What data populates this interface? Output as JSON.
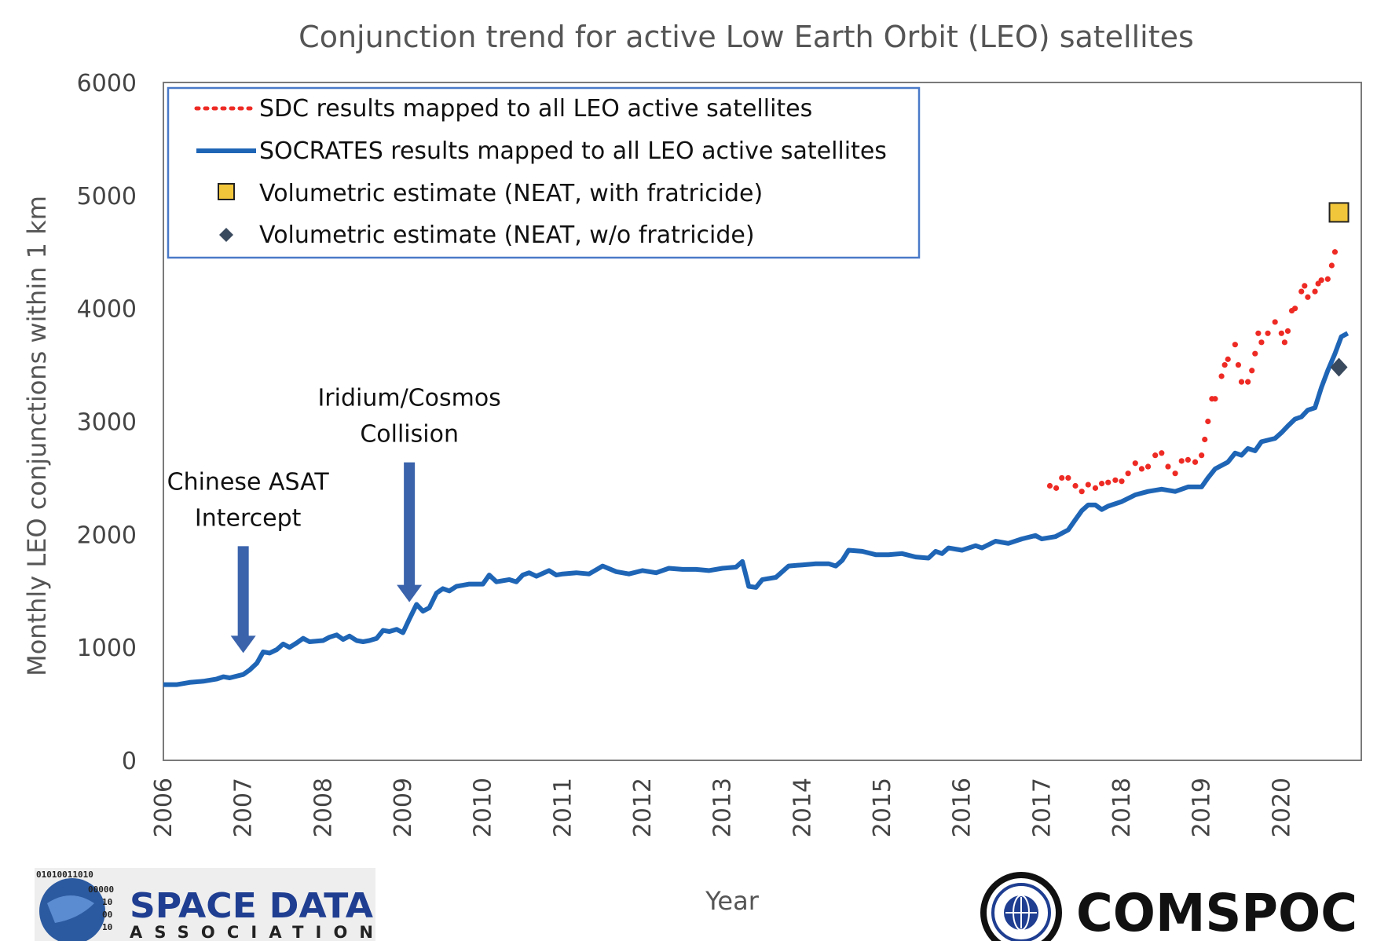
{
  "colors": {
    "socrates": "#1f65b6",
    "sdc": "#ee2a24",
    "neat_with": "#f2c63b",
    "neat_without": "#3a4a5e",
    "axis": "#7a7a7a",
    "legend_border": "#4a7ac8",
    "arrow": "#3a63ac",
    "sda_blue": "#1f3e91",
    "comspoc": "#111111"
  },
  "chart_data": {
    "type": "line",
    "title": "Conjunction trend for active Low Earth Orbit (LEO) satellites",
    "xlabel": "Year",
    "ylabel": "Monthly LEO conjunctions within 1 km",
    "xlim": [
      2006,
      2021
    ],
    "ylim": [
      0,
      6000
    ],
    "x_ticks": [
      "2006",
      "2007",
      "2008",
      "2009",
      "2010",
      "2011",
      "2012",
      "2013",
      "2014",
      "2015",
      "2016",
      "2017",
      "2018",
      "2019",
      "2020"
    ],
    "y_ticks": [
      "0",
      "1000",
      "2000",
      "3000",
      "4000",
      "5000",
      "6000"
    ],
    "grid": false,
    "legend_position": "top-left",
    "series": [
      {
        "name": "SDC results mapped to all LEO active satellites",
        "style": "dotted",
        "points": [
          [
            2017.1,
            2430
          ],
          [
            2017.18,
            2410
          ],
          [
            2017.25,
            2500
          ],
          [
            2017.33,
            2500
          ],
          [
            2017.42,
            2430
          ],
          [
            2017.5,
            2380
          ],
          [
            2017.58,
            2440
          ],
          [
            2017.67,
            2410
          ],
          [
            2017.75,
            2450
          ],
          [
            2017.83,
            2460
          ],
          [
            2017.92,
            2480
          ],
          [
            2018.0,
            2470
          ],
          [
            2018.08,
            2540
          ],
          [
            2018.17,
            2630
          ],
          [
            2018.25,
            2580
          ],
          [
            2018.33,
            2600
          ],
          [
            2018.42,
            2700
          ],
          [
            2018.5,
            2720
          ],
          [
            2018.58,
            2600
          ],
          [
            2018.67,
            2540
          ],
          [
            2018.75,
            2650
          ],
          [
            2018.83,
            2660
          ],
          [
            2018.92,
            2640
          ],
          [
            2019.0,
            2700
          ],
          [
            2019.04,
            2840
          ],
          [
            2019.08,
            3000
          ],
          [
            2019.13,
            3200
          ],
          [
            2019.17,
            3200
          ],
          [
            2019.25,
            3400
          ],
          [
            2019.29,
            3500
          ],
          [
            2019.33,
            3550
          ],
          [
            2019.42,
            3680
          ],
          [
            2019.46,
            3500
          ],
          [
            2019.5,
            3350
          ],
          [
            2019.58,
            3350
          ],
          [
            2019.63,
            3450
          ],
          [
            2019.67,
            3600
          ],
          [
            2019.71,
            3780
          ],
          [
            2019.75,
            3700
          ],
          [
            2019.83,
            3780
          ],
          [
            2019.92,
            3880
          ],
          [
            2020.0,
            3780
          ],
          [
            2020.04,
            3700
          ],
          [
            2020.08,
            3800
          ],
          [
            2020.13,
            3980
          ],
          [
            2020.17,
            4000
          ],
          [
            2020.25,
            4150
          ],
          [
            2020.29,
            4200
          ],
          [
            2020.33,
            4100
          ],
          [
            2020.42,
            4150
          ],
          [
            2020.46,
            4220
          ],
          [
            2020.5,
            4250
          ],
          [
            2020.58,
            4260
          ],
          [
            2020.63,
            4380
          ],
          [
            2020.67,
            4500
          ]
        ]
      },
      {
        "name": "SOCRATES results mapped to all LEO active satellites",
        "style": "solid",
        "points": [
          [
            2006.0,
            670
          ],
          [
            2006.17,
            670
          ],
          [
            2006.33,
            690
          ],
          [
            2006.5,
            700
          ],
          [
            2006.67,
            720
          ],
          [
            2006.75,
            740
          ],
          [
            2006.83,
            730
          ],
          [
            2007.0,
            760
          ],
          [
            2007.08,
            800
          ],
          [
            2007.17,
            860
          ],
          [
            2007.25,
            960
          ],
          [
            2007.33,
            950
          ],
          [
            2007.42,
            980
          ],
          [
            2007.5,
            1030
          ],
          [
            2007.58,
            1000
          ],
          [
            2007.67,
            1040
          ],
          [
            2007.75,
            1080
          ],
          [
            2007.83,
            1050
          ],
          [
            2008.0,
            1060
          ],
          [
            2008.08,
            1090
          ],
          [
            2008.17,
            1110
          ],
          [
            2008.25,
            1070
          ],
          [
            2008.33,
            1100
          ],
          [
            2008.42,
            1060
          ],
          [
            2008.5,
            1050
          ],
          [
            2008.58,
            1060
          ],
          [
            2008.67,
            1080
          ],
          [
            2008.75,
            1150
          ],
          [
            2008.83,
            1140
          ],
          [
            2008.92,
            1160
          ],
          [
            2009.0,
            1130
          ],
          [
            2009.08,
            1250
          ],
          [
            2009.17,
            1380
          ],
          [
            2009.25,
            1320
          ],
          [
            2009.33,
            1350
          ],
          [
            2009.42,
            1480
          ],
          [
            2009.5,
            1520
          ],
          [
            2009.58,
            1500
          ],
          [
            2009.67,
            1540
          ],
          [
            2009.75,
            1550
          ],
          [
            2009.83,
            1560
          ],
          [
            2010.0,
            1560
          ],
          [
            2010.08,
            1640
          ],
          [
            2010.17,
            1580
          ],
          [
            2010.33,
            1600
          ],
          [
            2010.42,
            1580
          ],
          [
            2010.5,
            1640
          ],
          [
            2010.58,
            1660
          ],
          [
            2010.67,
            1630
          ],
          [
            2010.83,
            1680
          ],
          [
            2010.92,
            1640
          ],
          [
            2011.0,
            1650
          ],
          [
            2011.17,
            1660
          ],
          [
            2011.33,
            1650
          ],
          [
            2011.5,
            1720
          ],
          [
            2011.67,
            1670
          ],
          [
            2011.83,
            1650
          ],
          [
            2012.0,
            1680
          ],
          [
            2012.17,
            1660
          ],
          [
            2012.33,
            1700
          ],
          [
            2012.5,
            1690
          ],
          [
            2012.67,
            1690
          ],
          [
            2012.83,
            1680
          ],
          [
            2013.0,
            1700
          ],
          [
            2013.17,
            1710
          ],
          [
            2013.25,
            1760
          ],
          [
            2013.33,
            1540
          ],
          [
            2013.42,
            1530
          ],
          [
            2013.5,
            1600
          ],
          [
            2013.67,
            1620
          ],
          [
            2013.83,
            1720
          ],
          [
            2014.0,
            1730
          ],
          [
            2014.17,
            1740
          ],
          [
            2014.33,
            1740
          ],
          [
            2014.42,
            1720
          ],
          [
            2014.5,
            1770
          ],
          [
            2014.58,
            1860
          ],
          [
            2014.75,
            1850
          ],
          [
            2014.92,
            1820
          ],
          [
            2015.08,
            1820
          ],
          [
            2015.25,
            1830
          ],
          [
            2015.42,
            1800
          ],
          [
            2015.58,
            1790
          ],
          [
            2015.67,
            1850
          ],
          [
            2015.75,
            1830
          ],
          [
            2015.83,
            1880
          ],
          [
            2016.0,
            1860
          ],
          [
            2016.17,
            1900
          ],
          [
            2016.25,
            1880
          ],
          [
            2016.42,
            1940
          ],
          [
            2016.58,
            1920
          ],
          [
            2016.75,
            1960
          ],
          [
            2016.92,
            1990
          ],
          [
            2017.0,
            1960
          ],
          [
            2017.17,
            1980
          ],
          [
            2017.33,
            2040
          ],
          [
            2017.42,
            2130
          ],
          [
            2017.5,
            2210
          ],
          [
            2017.58,
            2260
          ],
          [
            2017.67,
            2260
          ],
          [
            2017.75,
            2220
          ],
          [
            2017.83,
            2250
          ],
          [
            2018.0,
            2290
          ],
          [
            2018.17,
            2350
          ],
          [
            2018.33,
            2380
          ],
          [
            2018.5,
            2400
          ],
          [
            2018.67,
            2380
          ],
          [
            2018.83,
            2420
          ],
          [
            2019.0,
            2420
          ],
          [
            2019.08,
            2500
          ],
          [
            2019.17,
            2580
          ],
          [
            2019.33,
            2640
          ],
          [
            2019.42,
            2720
          ],
          [
            2019.5,
            2700
          ],
          [
            2019.58,
            2760
          ],
          [
            2019.67,
            2740
          ],
          [
            2019.75,
            2820
          ],
          [
            2019.92,
            2850
          ],
          [
            2020.0,
            2900
          ],
          [
            2020.08,
            2960
          ],
          [
            2020.17,
            3020
          ],
          [
            2020.25,
            3040
          ],
          [
            2020.33,
            3100
          ],
          [
            2020.42,
            3120
          ],
          [
            2020.5,
            3300
          ],
          [
            2020.58,
            3450
          ],
          [
            2020.67,
            3600
          ],
          [
            2020.75,
            3750
          ],
          [
            2020.83,
            3780
          ]
        ]
      },
      {
        "name": "Volumetric estimate (NEAT, with fratricide)",
        "style": "square-marker",
        "points": [
          [
            2020.72,
            4850
          ]
        ]
      },
      {
        "name": "Volumetric estimate (NEAT, w/o fratricide)",
        "style": "diamond-marker",
        "points": [
          [
            2020.72,
            3480
          ]
        ]
      }
    ],
    "annotations": [
      {
        "lines": [
          "Chinese ASAT",
          "Intercept"
        ],
        "x": 2007.0,
        "y": 950
      },
      {
        "lines": [
          "Iridium/Cosmos",
          "Collision"
        ],
        "x": 2009.08,
        "y": 1400
      }
    ]
  },
  "logos": {
    "sda": {
      "line1": "SPACE DATA",
      "line2": "ASSOCIATION",
      "binary": [
        "01010011010",
        "00000",
        "10",
        "00",
        "10"
      ]
    },
    "comspoc": {
      "text": "COMSPOC"
    }
  }
}
